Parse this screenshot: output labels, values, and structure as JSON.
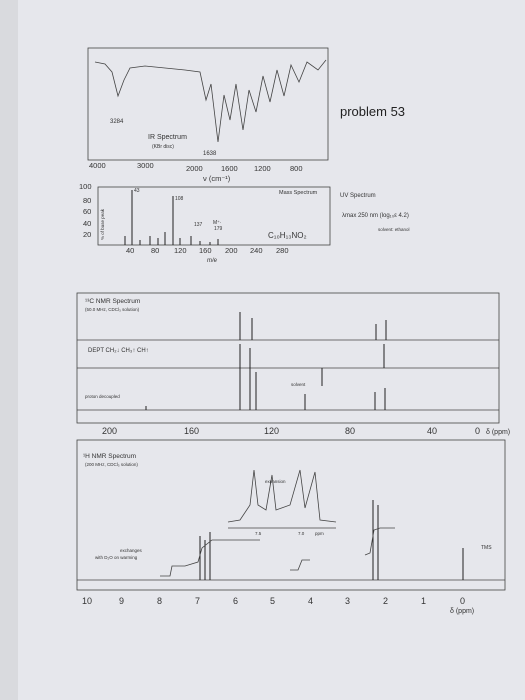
{
  "header": {
    "problem": "problem 53"
  },
  "ir": {
    "peak_high": "3284",
    "title": "IR Spectrum",
    "subtitle": "(KBr disc)",
    "peak_low": "1638",
    "xticks": [
      "4000",
      "3000",
      "2000",
      "1600",
      "1200",
      "800"
    ],
    "xlabel": "ν (cm⁻¹)"
  },
  "mass": {
    "title": "Mass Spectrum",
    "peaks": [
      "43",
      "108",
      "137"
    ],
    "molecular_ion": "M⁺·",
    "molecular_mass": "179",
    "formula": "C₁₀H₁₃NO₂",
    "yticks": [
      "100",
      "80",
      "60",
      "40",
      "20"
    ],
    "ylabel": "% of base peak",
    "xticks": [
      "40",
      "80",
      "120",
      "160",
      "200",
      "240",
      "280"
    ],
    "xlabel": "m/e"
  },
  "uv": {
    "title": "UV Spectrum",
    "lambda": "λmax 250 nm (log₁₀ε 4.2)",
    "solvent": "solvent: ethanol"
  },
  "c13": {
    "title": "¹³C NMR Spectrum",
    "subtitle": "(50.0 MHz, CDCl₃ solution)",
    "dept": "DEPT  CH₂↓  CH₃↑  CH↑",
    "solvent": "solvent",
    "decoupled": "proton decoupled",
    "xticks": [
      "200",
      "160",
      "120",
      "80",
      "40",
      "0"
    ],
    "xlabel": "δ (ppm)"
  },
  "h1": {
    "title": "¹H NMR Spectrum",
    "subtitle": "(200 MHz, CDCl₃ solution)",
    "expansion": "expansion",
    "expansion_ticks": [
      "7.5",
      "7.0",
      "ppm"
    ],
    "exchange": [
      "exchanges",
      "with D₂O on warming"
    ],
    "tms": "TMS",
    "xticks": [
      "10",
      "9",
      "8",
      "7",
      "6",
      "5",
      "4",
      "3",
      "2",
      "1",
      "0"
    ],
    "xlabel": "δ (ppm)"
  }
}
